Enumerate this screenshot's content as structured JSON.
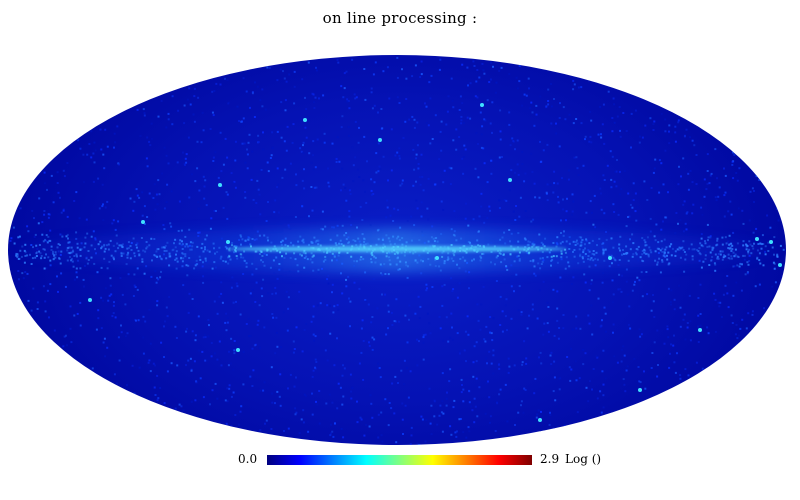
{
  "title": "on line processing :",
  "colorbar": {
    "min_label": "0.0",
    "max_label": "2.9",
    "unit_label": "Log ()",
    "colormap": [
      "#00007f",
      "#0000ff",
      "#0080ff",
      "#00ffff",
      "#80ff80",
      "#ffff00",
      "#ff8000",
      "#ff0000",
      "#7f0000"
    ]
  },
  "map": {
    "projection": "mollweide",
    "background_color": "#0000a8",
    "scale": "log"
  }
}
